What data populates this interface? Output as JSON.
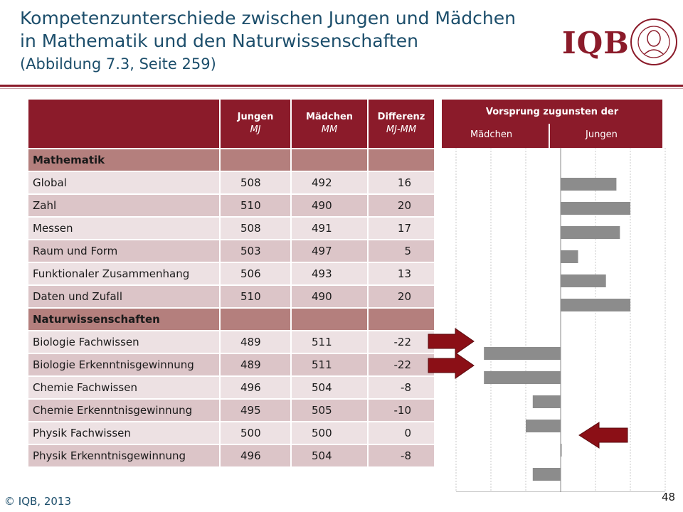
{
  "title": {
    "line1": "Kompetenzunterschiede zwischen Jungen und Mädchen",
    "line2": "in Mathematik und den Naturwissenschaften",
    "line3": "(Abbildung 7.3, Seite 259)"
  },
  "logo": {
    "text": "IQB",
    "seal_icon": "university-seal-icon"
  },
  "table": {
    "headers": {
      "jungen": "Jungen",
      "jungen_sym": "MJ",
      "maedchen": "Mädchen",
      "maedchen_sym": "MM",
      "differenz": "Differenz",
      "differenz_sym": "MJ-MM"
    },
    "rows": [
      {
        "label": "Mathematik",
        "section": true,
        "j": "",
        "m": "",
        "d": ""
      },
      {
        "label": "Global",
        "j": "508",
        "m": "492",
        "d": "16"
      },
      {
        "label": "Zahl",
        "j": "510",
        "m": "490",
        "d": "20"
      },
      {
        "label": "Messen",
        "j": "508",
        "m": "491",
        "d": "17"
      },
      {
        "label": "Raum und Form",
        "j": "503",
        "m": "497",
        "d": "5"
      },
      {
        "label": "Funktionaler Zusammenhang",
        "j": "506",
        "m": "493",
        "d": "13"
      },
      {
        "label": "Daten und Zufall",
        "j": "510",
        "m": "490",
        "d": "20"
      },
      {
        "label": "Naturwissenschaften",
        "section": true,
        "j": "",
        "m": "",
        "d": ""
      },
      {
        "label": "Biologie Fachwissen",
        "j": "489",
        "m": "511",
        "d": "-22"
      },
      {
        "label": "Biologie Erkenntnisgewinnung",
        "j": "489",
        "m": "511",
        "d": "-22"
      },
      {
        "label": "Chemie Fachwissen",
        "j": "496",
        "m": "504",
        "d": "-8"
      },
      {
        "label": "Chemie Erkenntnisgewinnung",
        "j": "495",
        "m": "505",
        "d": "-10"
      },
      {
        "label": "Physik Fachwissen",
        "j": "500",
        "m": "500",
        "d": "0"
      },
      {
        "label": "Physik Erkenntnisgewinnung",
        "j": "496",
        "m": "504",
        "d": "-8"
      }
    ]
  },
  "chart_header": {
    "title": "Vorsprung zugunsten der",
    "left": "Mädchen",
    "right": "Jungen"
  },
  "chart_data": {
    "type": "bar",
    "orientation": "horizontal",
    "categories": [
      "Mathematik",
      "Global",
      "Zahl",
      "Messen",
      "Raum und Form",
      "Funktionaler Zusammenhang",
      "Daten und Zufall",
      "Naturwissenschaften",
      "Biologie Fachwissen",
      "Biologie Erkenntnisgewinnung",
      "Chemie Fachwissen",
      "Chemie Erkenntnisgewinnung",
      "Physik Fachwissen",
      "Physik Erkenntnisgewinnung"
    ],
    "values": [
      null,
      16,
      20,
      17,
      5,
      13,
      20,
      null,
      -22,
      -22,
      -8,
      -10,
      0,
      -8
    ],
    "xlim": [
      -30,
      30
    ],
    "xticks": [
      -30,
      -10,
      10,
      30
    ],
    "grid": true,
    "bar_color": "#8c8c8c"
  },
  "footer": {
    "copyright": "© IQB, 2013",
    "page": "48"
  },
  "colors": {
    "accent": "#8b1b2a",
    "arrow": "#8b0f16"
  }
}
